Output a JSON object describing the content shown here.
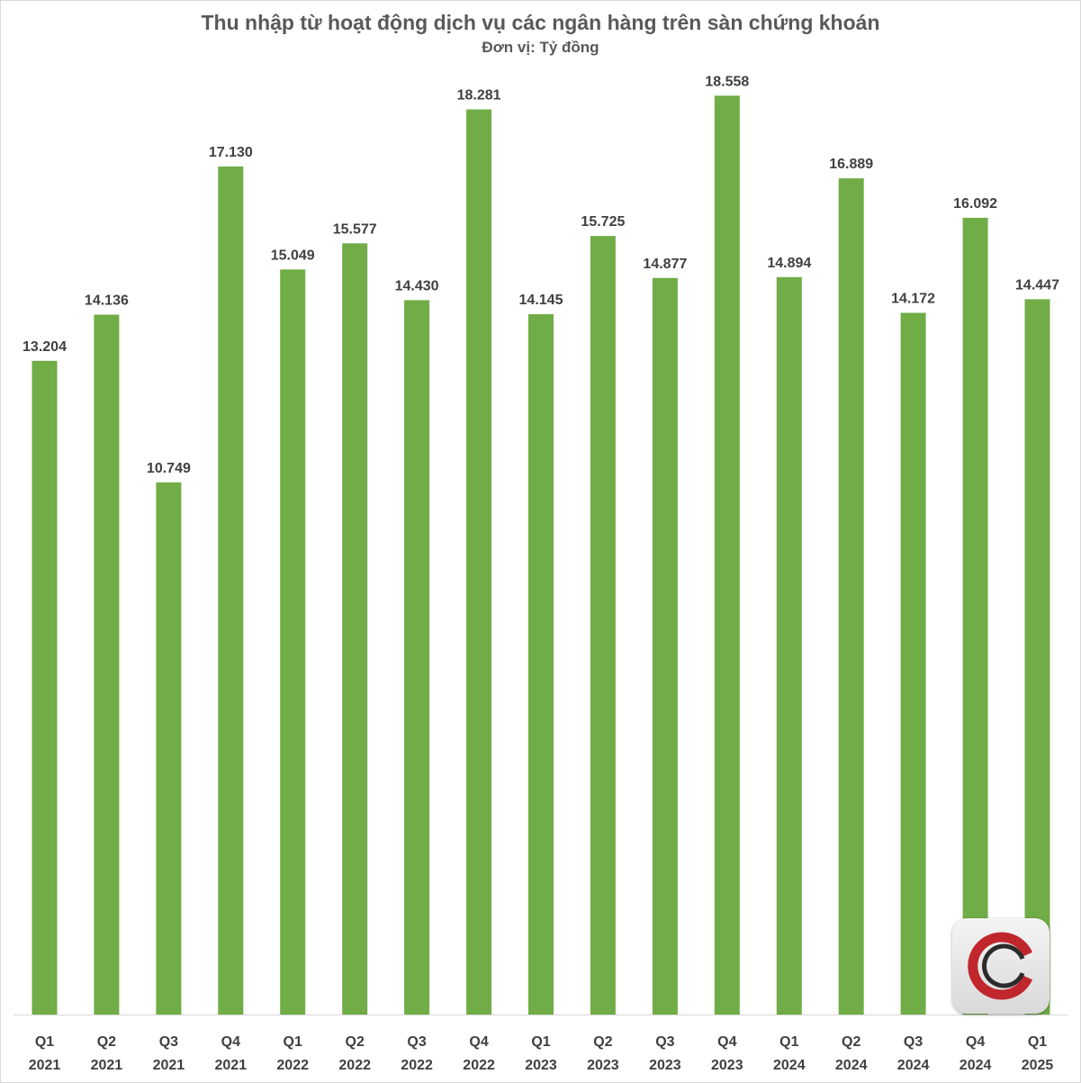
{
  "chart_data": {
    "type": "bar",
    "title": "Thu nhập từ hoạt động dịch vụ các ngân hàng trên sàn chứng khoán",
    "subtitle": "Đơn vị: Tỷ đồng",
    "categories": [
      [
        "Q1",
        "2021"
      ],
      [
        "Q2",
        "2021"
      ],
      [
        "Q3",
        "2021"
      ],
      [
        "Q4",
        "2021"
      ],
      [
        "Q1",
        "2022"
      ],
      [
        "Q2",
        "2022"
      ],
      [
        "Q3",
        "2022"
      ],
      [
        "Q4",
        "2022"
      ],
      [
        "Q1",
        "2023"
      ],
      [
        "Q2",
        "2023"
      ],
      [
        "Q3",
        "2023"
      ],
      [
        "Q4",
        "2023"
      ],
      [
        "Q1",
        "2024"
      ],
      [
        "Q2",
        "2024"
      ],
      [
        "Q3",
        "2024"
      ],
      [
        "Q4",
        "2024"
      ],
      [
        "Q1",
        "2025"
      ]
    ],
    "values": [
      13204,
      14136,
      10749,
      17130,
      15049,
      15577,
      14430,
      18281,
      14145,
      15725,
      14877,
      18558,
      14894,
      16889,
      14172,
      16092,
      14447
    ],
    "value_labels": [
      "13.204",
      "14.136",
      "10.749",
      "17.130",
      "15.049",
      "15.577",
      "14.430",
      "18.281",
      "14.145",
      "15.725",
      "14.877",
      "18.558",
      "14.894",
      "16.889",
      "14.172",
      "16.092",
      "14.447"
    ],
    "ylim": [
      0,
      20000
    ],
    "bar_color": "#70ad47",
    "grid": false,
    "legend": "none"
  },
  "logo": {
    "name": "c-logo-icon",
    "colors": [
      "#c0272d",
      "#2b2b2b"
    ]
  }
}
